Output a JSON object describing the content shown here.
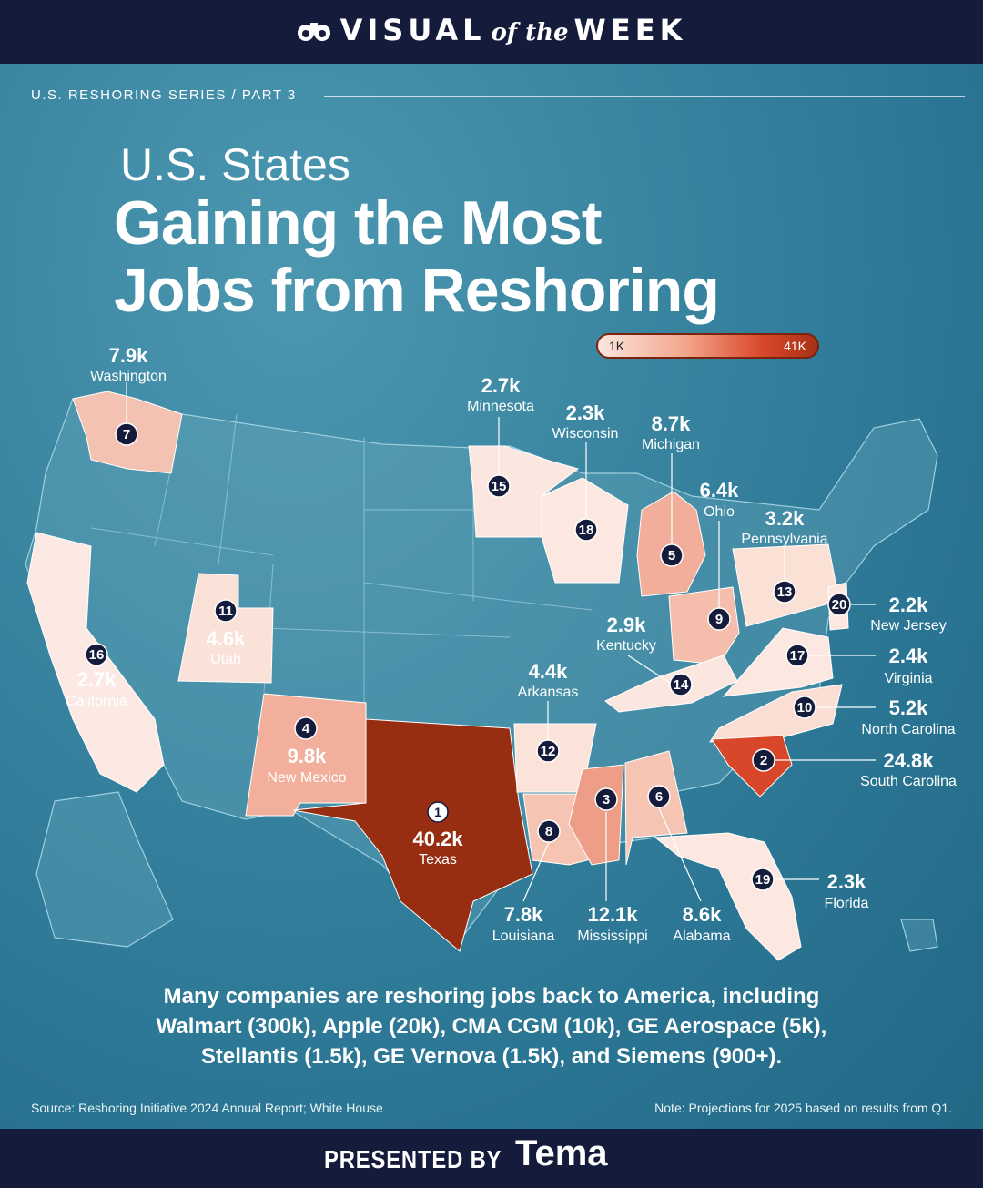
{
  "header": {
    "brand_left": "VISUAL",
    "brand_mid": "of the",
    "brand_right": "WEEK"
  },
  "series": "U.S. RESHORING SERIES / PART 3",
  "title": {
    "line1": "U.S. States",
    "line2": "Gaining the Most",
    "line3": "Jobs from Reshoring"
  },
  "legend": {
    "min": "1K",
    "max": "41K"
  },
  "colors": {
    "bg": "#2e7d98",
    "bar": "#151c3b",
    "low": "#fbe6df",
    "high": "#a63216"
  },
  "chart_data": {
    "type": "choropleth",
    "legend_range": [
      "1K",
      "41K"
    ],
    "states": [
      {
        "rank": 1,
        "state": "Texas",
        "value": "40.2k"
      },
      {
        "rank": 2,
        "state": "South Carolina",
        "value": "24.8k"
      },
      {
        "rank": 3,
        "state": "Mississippi",
        "value": "12.1k"
      },
      {
        "rank": 4,
        "state": "New Mexico",
        "value": "9.8k"
      },
      {
        "rank": 5,
        "state": "Michigan",
        "value": "8.7k"
      },
      {
        "rank": 6,
        "state": "Alabama",
        "value": "8.6k"
      },
      {
        "rank": 7,
        "state": "Washington",
        "value": "7.9k"
      },
      {
        "rank": 8,
        "state": "Louisiana",
        "value": "7.8k"
      },
      {
        "rank": 9,
        "state": "Ohio",
        "value": "6.4k"
      },
      {
        "rank": 10,
        "state": "North Carolina",
        "value": "5.2k"
      },
      {
        "rank": 11,
        "state": "Utah",
        "value": "4.6k"
      },
      {
        "rank": 12,
        "state": "Arkansas",
        "value": "4.4k"
      },
      {
        "rank": 13,
        "state": "Pennsylvania",
        "value": "3.2k"
      },
      {
        "rank": 14,
        "state": "Kentucky",
        "value": "2.9k"
      },
      {
        "rank": 15,
        "state": "Minnesota",
        "value": "2.7k"
      },
      {
        "rank": 16,
        "state": "California",
        "value": "2.7k"
      },
      {
        "rank": 17,
        "state": "Virginia",
        "value": "2.4k"
      },
      {
        "rank": 18,
        "state": "Wisconsin",
        "value": "2.3k"
      },
      {
        "rank": 19,
        "state": "Florida",
        "value": "2.3k"
      },
      {
        "rank": 20,
        "state": "New Jersey",
        "value": "2.2k"
      }
    ]
  },
  "footer": {
    "line1": "Many companies are reshoring jobs back to America, including",
    "line2": "Walmart (300k), Apple (20k), CMA CGM (10k), GE Aerospace (5k),",
    "line3": "Stellantis (1.5k), GE Vernova (1.5k), and Siemens (900+).",
    "source": "Source: Reshoring Initiative 2024 Annual Report; White House",
    "note": "Note: Projections for 2025 based on results from Q1."
  },
  "presented": {
    "label": "PRESENTED BY",
    "sponsor": "Tema"
  }
}
